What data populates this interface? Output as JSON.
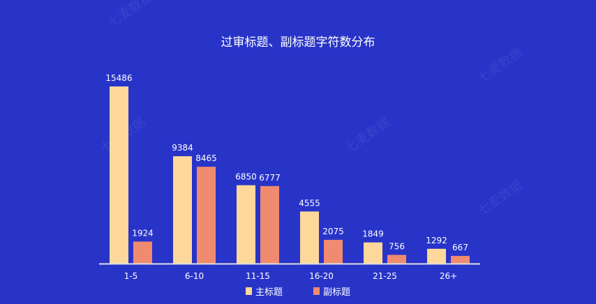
{
  "chart_data": {
    "type": "bar",
    "title": "过审标题、副标题字符数分布",
    "categories": [
      "1-5",
      "6-10",
      "11-15",
      "16-20",
      "21-25",
      "26+"
    ],
    "series": [
      {
        "name": "主标题",
        "color": "#fdd89a",
        "values": [
          15486,
          9384,
          6850,
          4555,
          1849,
          1292
        ]
      },
      {
        "name": "副标题",
        "color": "#f08b70",
        "values": [
          1924,
          8465,
          6777,
          2075,
          756,
          667
        ]
      }
    ],
    "ylim": [
      0,
      15486
    ],
    "grid": false,
    "legend_position": "bottom",
    "data_labels": true
  },
  "watermark": "七麦数据"
}
